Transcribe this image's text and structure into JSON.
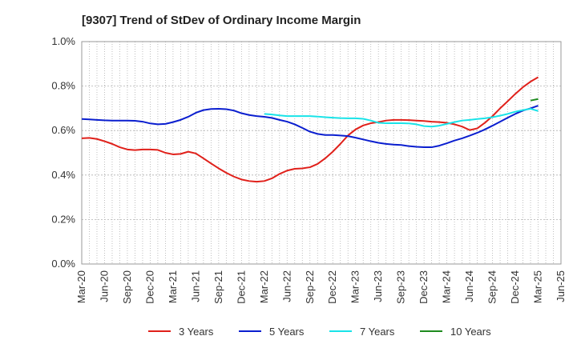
{
  "chart_data": {
    "type": "line",
    "title": "[9307]  Trend of StDev of Ordinary Income Margin",
    "xlabel": "",
    "ylabel": "",
    "x_ticks": [
      "Mar-20",
      "Jun-20",
      "Sep-20",
      "Dec-20",
      "Mar-21",
      "Jun-21",
      "Sep-21",
      "Dec-21",
      "Mar-22",
      "Jun-22",
      "Sep-22",
      "Dec-22",
      "Mar-23",
      "Jun-23",
      "Sep-23",
      "Dec-23",
      "Mar-24",
      "Jun-24",
      "Sep-24",
      "Dec-24",
      "Mar-25",
      "Jun-25"
    ],
    "y_ticks": [
      "0.0%",
      "0.2%",
      "0.4%",
      "0.6%",
      "0.8%",
      "1.0%"
    ],
    "ylim": [
      0,
      1.0
    ],
    "grid": true,
    "legend_position": "bottom",
    "series": [
      {
        "name": "3 Years",
        "color": "#e0201a",
        "x": [
          "Mar-20",
          "Apr-20",
          "May-20",
          "Jun-20",
          "Jul-20",
          "Aug-20",
          "Sep-20",
          "Oct-20",
          "Nov-20",
          "Dec-20",
          "Jan-21",
          "Feb-21",
          "Mar-21",
          "Apr-21",
          "May-21",
          "Jun-21",
          "Jul-21",
          "Aug-21",
          "Sep-21",
          "Oct-21",
          "Nov-21",
          "Dec-21",
          "Jan-22",
          "Feb-22",
          "Mar-22",
          "Apr-22",
          "May-22",
          "Jun-22",
          "Jul-22",
          "Aug-22",
          "Sep-22",
          "Oct-22",
          "Nov-22",
          "Dec-22",
          "Jan-23",
          "Feb-23",
          "Mar-23",
          "Apr-23",
          "May-23",
          "Jun-23",
          "Jul-23",
          "Aug-23",
          "Sep-23",
          "Oct-23",
          "Nov-23",
          "Dec-23",
          "Jan-24",
          "Feb-24",
          "Mar-24",
          "Apr-24",
          "May-24",
          "Jun-24",
          "Jul-24",
          "Aug-24",
          "Sep-24",
          "Oct-24",
          "Nov-24",
          "Dec-24",
          "Jan-25",
          "Feb-25",
          "Mar-25"
        ],
        "values": [
          0.565,
          0.567,
          0.562,
          0.552,
          0.54,
          0.525,
          0.515,
          0.512,
          0.515,
          0.515,
          0.513,
          0.5,
          0.493,
          0.495,
          0.505,
          0.497,
          0.475,
          0.452,
          0.43,
          0.41,
          0.393,
          0.38,
          0.373,
          0.37,
          0.373,
          0.385,
          0.405,
          0.42,
          0.428,
          0.43,
          0.435,
          0.45,
          0.475,
          0.505,
          0.54,
          0.578,
          0.605,
          0.623,
          0.633,
          0.638,
          0.645,
          0.648,
          0.648,
          0.647,
          0.645,
          0.643,
          0.64,
          0.638,
          0.635,
          0.628,
          0.618,
          0.602,
          0.61,
          0.635,
          0.665,
          0.7,
          0.732,
          0.765,
          0.795,
          0.82,
          0.84
        ]
      },
      {
        "name": "5 Years",
        "color": "#0a1ecf",
        "x": [
          "Mar-20",
          "Apr-20",
          "May-20",
          "Jun-20",
          "Jul-20",
          "Aug-20",
          "Sep-20",
          "Oct-20",
          "Nov-20",
          "Dec-20",
          "Jan-21",
          "Feb-21",
          "Mar-21",
          "Apr-21",
          "May-21",
          "Jun-21",
          "Jul-21",
          "Aug-21",
          "Sep-21",
          "Oct-21",
          "Nov-21",
          "Dec-21",
          "Jan-22",
          "Feb-22",
          "Mar-22",
          "Apr-22",
          "May-22",
          "Jun-22",
          "Jul-22",
          "Aug-22",
          "Sep-22",
          "Oct-22",
          "Nov-22",
          "Dec-22",
          "Jan-23",
          "Feb-23",
          "Mar-23",
          "Apr-23",
          "May-23",
          "Jun-23",
          "Jul-23",
          "Aug-23",
          "Sep-23",
          "Oct-23",
          "Nov-23",
          "Dec-23",
          "Jan-24",
          "Feb-24",
          "Mar-24",
          "Apr-24",
          "May-24",
          "Jun-24",
          "Jul-24",
          "Aug-24",
          "Sep-24",
          "Oct-24",
          "Nov-24",
          "Dec-24",
          "Jan-25",
          "Feb-25",
          "Mar-25"
        ],
        "values": [
          0.652,
          0.65,
          0.648,
          0.646,
          0.645,
          0.645,
          0.645,
          0.644,
          0.64,
          0.632,
          0.628,
          0.63,
          0.638,
          0.648,
          0.662,
          0.68,
          0.692,
          0.697,
          0.698,
          0.696,
          0.69,
          0.678,
          0.67,
          0.665,
          0.662,
          0.657,
          0.648,
          0.64,
          0.628,
          0.612,
          0.595,
          0.585,
          0.58,
          0.58,
          0.578,
          0.575,
          0.568,
          0.56,
          0.552,
          0.545,
          0.54,
          0.537,
          0.535,
          0.53,
          0.527,
          0.525,
          0.525,
          0.532,
          0.543,
          0.555,
          0.565,
          0.577,
          0.59,
          0.605,
          0.622,
          0.64,
          0.658,
          0.675,
          0.69,
          0.7,
          0.712
        ]
      },
      {
        "name": "7 Years",
        "color": "#19e3e8",
        "x": [
          "Mar-22",
          "Apr-22",
          "May-22",
          "Jun-22",
          "Jul-22",
          "Aug-22",
          "Sep-22",
          "Oct-22",
          "Nov-22",
          "Dec-22",
          "Jan-23",
          "Feb-23",
          "Mar-23",
          "Apr-23",
          "May-23",
          "Jun-23",
          "Jul-23",
          "Aug-23",
          "Sep-23",
          "Oct-23",
          "Nov-23",
          "Dec-23",
          "Jan-24",
          "Feb-24",
          "Mar-24",
          "Apr-24",
          "May-24",
          "Jun-24",
          "Jul-24",
          "Aug-24",
          "Sep-24",
          "Oct-24",
          "Nov-24",
          "Dec-24",
          "Jan-25",
          "Feb-25",
          "Mar-25"
        ],
        "values": [
          0.675,
          0.672,
          0.668,
          0.665,
          0.665,
          0.665,
          0.665,
          0.663,
          0.66,
          0.658,
          0.656,
          0.655,
          0.655,
          0.653,
          0.645,
          0.635,
          0.633,
          0.633,
          0.633,
          0.632,
          0.628,
          0.62,
          0.618,
          0.622,
          0.63,
          0.638,
          0.645,
          0.648,
          0.652,
          0.655,
          0.66,
          0.667,
          0.675,
          0.685,
          0.692,
          0.698,
          0.688
        ]
      },
      {
        "name": "10 Years",
        "color": "#1e8a1e",
        "x": [
          "Feb-25",
          "Mar-25"
        ],
        "values": [
          0.735,
          0.742
        ]
      }
    ]
  }
}
